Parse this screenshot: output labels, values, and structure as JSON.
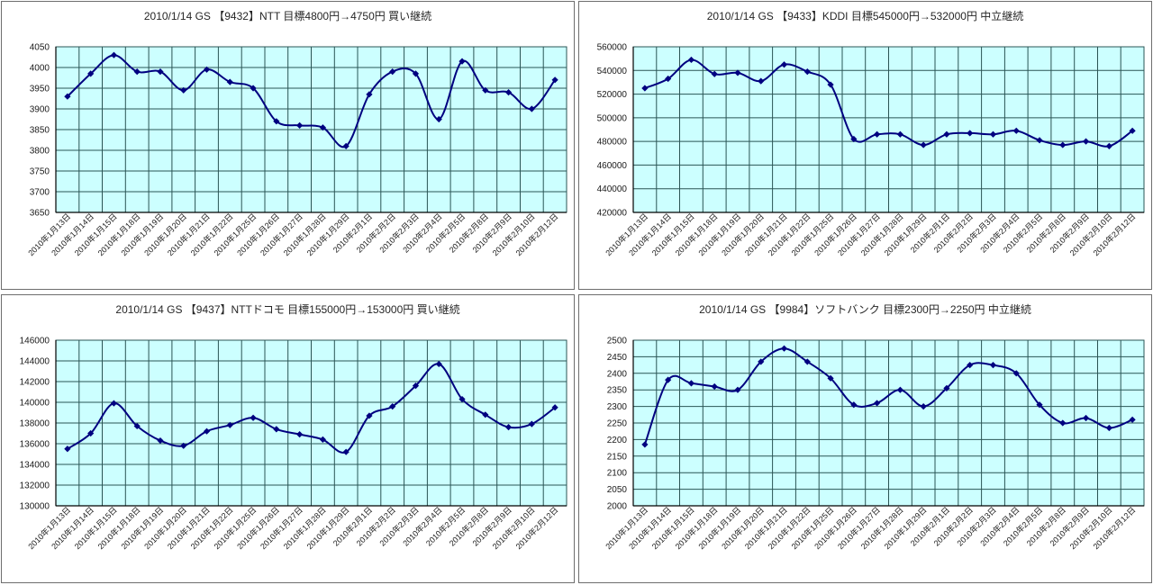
{
  "colors": {
    "plot_bg": "#CCFFFF",
    "gridline": "#2A5454",
    "axis": "#000000",
    "line": "#000080",
    "marker": "#000080",
    "panel_border": "#6E6E6E",
    "title_text": "#262626",
    "label_text": "#1A1A1A"
  },
  "chart_data": [
    {
      "type": "line",
      "title": "2010/1/14 GS 【9432】NTT 目標4800円→4750円 買い継続",
      "xlabel": "",
      "ylabel": "",
      "ylim": [
        3650,
        4050
      ],
      "y_step": 50,
      "grid": true,
      "legend": "none",
      "smooth": true,
      "marker": "diamond",
      "categories": [
        "2010年1月13日",
        "2010年1月14日",
        "2010年1月15日",
        "2010年1月18日",
        "2010年1月19日",
        "2010年1月20日",
        "2010年1月21日",
        "2010年1月22日",
        "2010年1月25日",
        "2010年1月26日",
        "2010年1月27日",
        "2010年1月28日",
        "2010年1月29日",
        "2010年2月1日",
        "2010年2月2日",
        "2010年2月3日",
        "2010年2月4日",
        "2010年2月5日",
        "2010年2月8日",
        "2010年2月9日",
        "2010年2月10日",
        "2010年2月12日"
      ],
      "values": [
        3930,
        3985,
        4030,
        3990,
        3990,
        3945,
        3995,
        3965,
        3950,
        3870,
        3860,
        3855,
        3810,
        3935,
        3990,
        3985,
        3875,
        4015,
        3945,
        3940,
        3900,
        3970
      ]
    },
    {
      "type": "line",
      "title": "2010/1/14 GS 【9433】KDDI 目標545000円→532000円 中立継続",
      "xlabel": "",
      "ylabel": "",
      "ylim": [
        420000,
        560000
      ],
      "y_step": 20000,
      "grid": true,
      "legend": "none",
      "smooth": true,
      "marker": "diamond",
      "categories": [
        "2010年1月13日",
        "2010年1月14日",
        "2010年1月15日",
        "2010年1月18日",
        "2010年1月19日",
        "2010年1月20日",
        "2010年1月21日",
        "2010年1月22日",
        "2010年1月25日",
        "2010年1月26日",
        "2010年1月27日",
        "2010年1月28日",
        "2010年1月29日",
        "2010年2月1日",
        "2010年2月2日",
        "2010年2月3日",
        "2010年2月4日",
        "2010年2月5日",
        "2010年2月8日",
        "2010年2月9日",
        "2010年2月10日",
        "2010年2月12日"
      ],
      "values": [
        525000,
        533000,
        549000,
        537000,
        538000,
        531000,
        545000,
        539000,
        528000,
        482000,
        486000,
        486000,
        477000,
        486000,
        487000,
        486000,
        489000,
        481000,
        477000,
        480000,
        476000,
        489000
      ]
    },
    {
      "type": "line",
      "title": "2010/1/14 GS 【9437】NTTドコモ 目標155000円→153000円 買い継続",
      "xlabel": "",
      "ylabel": "",
      "ylim": [
        130000,
        146000
      ],
      "y_step": 2000,
      "grid": true,
      "legend": "none",
      "smooth": true,
      "marker": "diamond",
      "categories": [
        "2010年1月13日",
        "2010年1月14日",
        "2010年1月15日",
        "2010年1月18日",
        "2010年1月19日",
        "2010年1月20日",
        "2010年1月21日",
        "2010年1月22日",
        "2010年1月25日",
        "2010年1月26日",
        "2010年1月27日",
        "2010年1月28日",
        "2010年1月29日",
        "2010年2月1日",
        "2010年2月2日",
        "2010年2月3日",
        "2010年2月4日",
        "2010年2月5日",
        "2010年2月8日",
        "2010年2月9日",
        "2010年2月10日",
        "2010年2月12日"
      ],
      "values": [
        135500,
        137000,
        139900,
        137700,
        136300,
        135800,
        137200,
        137800,
        138500,
        137400,
        136900,
        136400,
        135200,
        138700,
        139600,
        141600,
        143700,
        140300,
        138800,
        137600,
        137900,
        139500
      ]
    },
    {
      "type": "line",
      "title": "2010/1/14 GS 【9984】ソフトバンク 目標2300円→2250円 中立継続",
      "xlabel": "",
      "ylabel": "",
      "ylim": [
        2000,
        2500
      ],
      "y_step": 50,
      "grid": true,
      "legend": "none",
      "smooth": true,
      "marker": "diamond",
      "categories": [
        "2010年1月13日",
        "2010年1月14日",
        "2010年1月15日",
        "2010年1月18日",
        "2010年1月19日",
        "2010年1月20日",
        "2010年1月21日",
        "2010年1月22日",
        "2010年1月25日",
        "2010年1月26日",
        "2010年1月27日",
        "2010年1月28日",
        "2010年1月29日",
        "2010年2月1日",
        "2010年2月2日",
        "2010年2月3日",
        "2010年2月4日",
        "2010年2月5日",
        "2010年2月8日",
        "2010年2月9日",
        "2010年2月10日",
        "2010年2月12日"
      ],
      "values": [
        2185,
        2380,
        2370,
        2360,
        2350,
        2435,
        2475,
        2435,
        2385,
        2305,
        2310,
        2350,
        2300,
        2355,
        2425,
        2425,
        2400,
        2305,
        2250,
        2265,
        2235,
        2260
      ]
    }
  ]
}
